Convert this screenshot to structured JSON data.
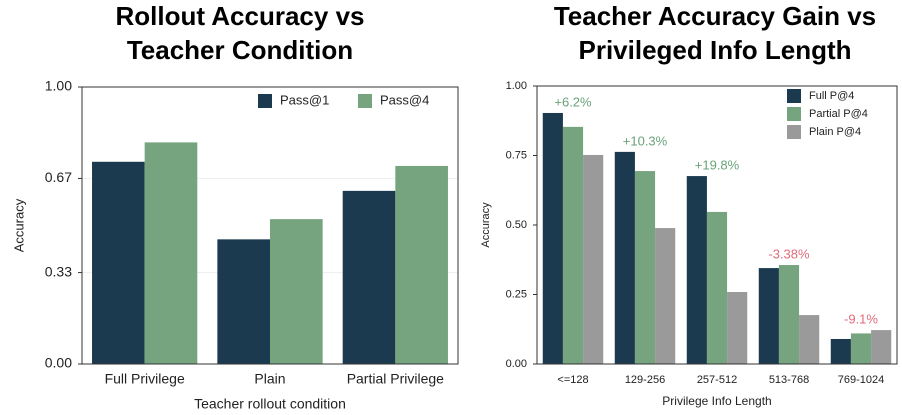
{
  "chart_data": [
    {
      "type": "bar",
      "title": [
        "Rollout Accuracy vs",
        "Teacher Condition"
      ],
      "x_label": "Teacher rollout condition",
      "y_label": "Accuracy",
      "categories": [
        "Full Privilege",
        "Plain",
        "Partial Privilege"
      ],
      "series": [
        {
          "name": "Pass@1",
          "color": "#1b3a4f",
          "values": [
            0.73,
            0.45,
            0.625
          ]
        },
        {
          "name": "Pass@4",
          "color": "#76a47f",
          "values": [
            0.8,
            0.523,
            0.715
          ]
        }
      ],
      "ylim": [
        0,
        1
      ],
      "yticks": [
        {
          "value": 0,
          "label": "0.00"
        },
        0.33,
        0.67,
        {
          "value": 1,
          "label": "1.00"
        }
      ],
      "grid": true,
      "legend": "upper right",
      "legend_layout": "horizontal"
    },
    {
      "type": "bar",
      "title": [
        "Teacher Accuracy Gain vs",
        "Privileged Info Length"
      ],
      "x_label": "Privilege Info Length",
      "y_label": "Accuracy",
      "categories": [
        "<=128",
        "129-256",
        "257-512",
        "513-768",
        "769-1024"
      ],
      "series": [
        {
          "name": "Full P@4",
          "color": "#1b3a4f",
          "values": [
            0.903,
            0.763,
            0.676,
            0.345,
            0.09
          ]
        },
        {
          "name": "Partial P@4",
          "color": "#76a47f",
          "values": [
            0.853,
            0.694,
            0.547,
            0.356,
            0.11
          ]
        },
        {
          "name": "Plain P@4",
          "color": "#9a9a9a",
          "values": [
            0.752,
            0.489,
            0.259,
            0.176,
            0.122
          ]
        }
      ],
      "annotations": [
        {
          "text": "+6.2%",
          "color": "#6aa37a"
        },
        {
          "text": "+10.3%",
          "color": "#6aa37a"
        },
        {
          "text": "+19.8%",
          "color": "#6aa37a"
        },
        {
          "text": "-3.38%",
          "color": "#e06c7a"
        },
        {
          "text": "-9.1%",
          "color": "#e06c7a"
        }
      ],
      "ylim": [
        0,
        1
      ],
      "yticks": [
        {
          "value": 0,
          "label": "0.00"
        },
        0.25,
        {
          "value": 0.5,
          "label": "0.50"
        },
        0.75,
        {
          "value": 1,
          "label": "1.00"
        }
      ],
      "grid": false,
      "legend": "upper right",
      "legend_layout": "vertical"
    }
  ]
}
